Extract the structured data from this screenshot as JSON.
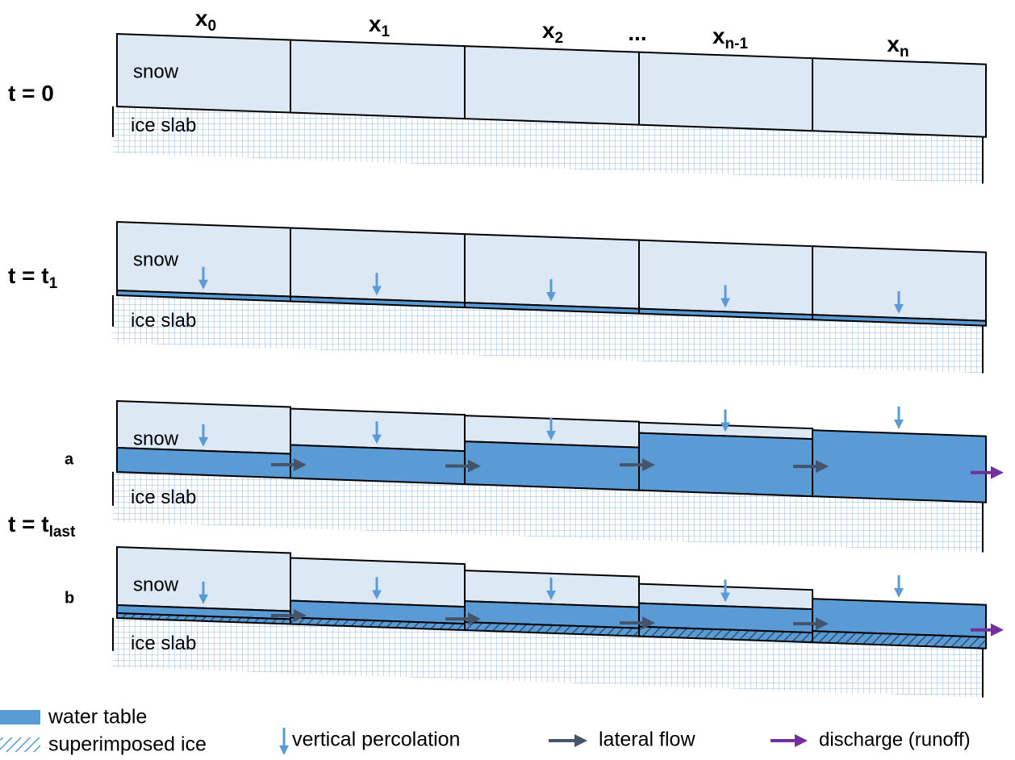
{
  "columns": [
    {
      "base": "x",
      "sub": "0"
    },
    {
      "base": "x",
      "sub": "1"
    },
    {
      "base": "x",
      "sub": "2"
    },
    {
      "base": "..."
    },
    {
      "base": "x",
      "sub": "n-1"
    },
    {
      "base": "x",
      "sub": "n"
    }
  ],
  "rows": [
    {
      "base": "t = 0"
    },
    {
      "base": "t = t",
      "sub": "1"
    },
    {
      "base": "t = t",
      "sub": "last"
    }
  ],
  "cases": [
    "a",
    "b"
  ],
  "panels": [
    {
      "snow": "snow",
      "ice": "ice slab"
    },
    {
      "snow": "snow",
      "ice": "ice slab"
    },
    {
      "snow": "snow",
      "ice": "ice slab"
    },
    {
      "snow": "snow",
      "ice": "ice slab"
    }
  ],
  "legend": [
    "water table",
    "superimposed ice",
    "vertical percolation",
    "lateral flow",
    "discharge (runoff)"
  ]
}
